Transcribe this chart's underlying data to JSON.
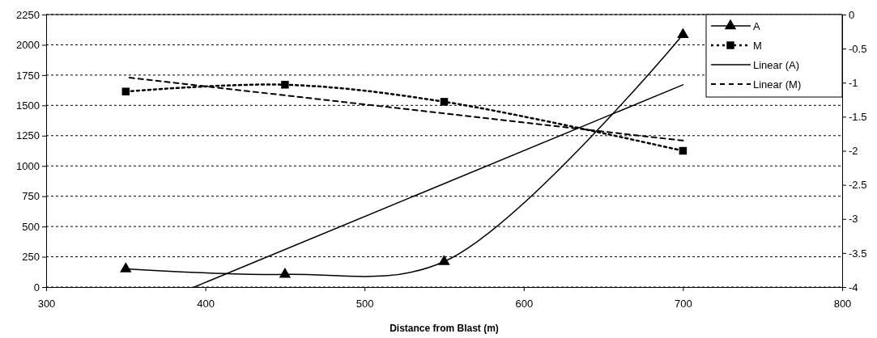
{
  "chart_data": {
    "type": "line",
    "xlabel": "Distance from Blast (m)",
    "x": [
      350,
      450,
      550,
      700
    ],
    "xlim": [
      300,
      800
    ],
    "xticks": [
      300,
      400,
      500,
      600,
      700,
      800
    ],
    "ylim": [
      0,
      2250
    ],
    "yticks": [
      0,
      250,
      500,
      750,
      1000,
      1250,
      1500,
      1750,
      2000,
      2250
    ],
    "y2lim": [
      -4,
      0
    ],
    "y2ticks": [
      -4,
      -3.5,
      -3,
      -2.5,
      -2,
      -1.5,
      -1,
      -0.5,
      0
    ],
    "grid": "y",
    "legend": "top right",
    "series": [
      {
        "name": "A",
        "color": "#000000",
        "values": [
          150,
          105,
          210,
          2085
        ],
        "marker": "triangle",
        "line_style": "solid"
      },
      {
        "name": "M",
        "color": "#000000",
        "values": [
          -1.13,
          -1.03,
          -1.28,
          -2.0
        ],
        "axis": "y2",
        "marker": "square",
        "line_style": "dotted"
      },
      {
        "name": "Linear (A)",
        "color": "#000000",
        "x": [
          393,
          700
        ],
        "values": [
          0,
          1670
        ],
        "marker": "none",
        "line_style": "solid"
      },
      {
        "name": "Linear (M)",
        "color": "#000000",
        "x": [
          350,
          700
        ],
        "values": [
          -0.92,
          -1.85
        ],
        "axis": "y2",
        "marker": "none",
        "line_style": "dashed"
      }
    ]
  }
}
